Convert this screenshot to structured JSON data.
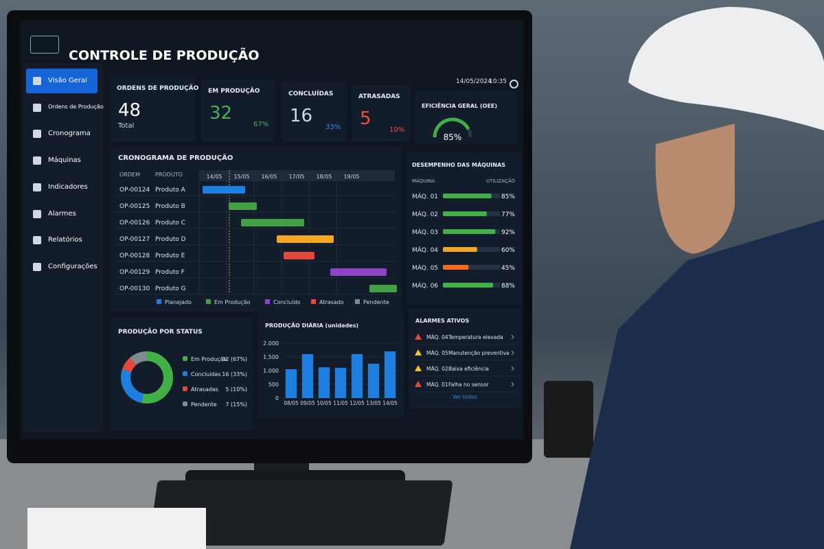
{
  "header": {
    "title": "CONTROLE DE PRODUÇÃO",
    "date": "14/05/2024",
    "time": "10:35"
  },
  "menu": [
    "Visão Geral",
    "Ordens de Produção",
    "Cronograma",
    "Máquinas",
    "Indicadores",
    "Alarmes",
    "Relatórios",
    "Configurações"
  ],
  "cards": [
    {
      "title": "ORDENS DE PRODUÇÃO",
      "value": "48",
      "sub": "Total",
      "color": "#ffffff",
      "subcolor": "#cfd8e3"
    },
    {
      "title": "EM PRODUÇÃO",
      "value": "32",
      "sub": "67%",
      "color": "#4caf50",
      "subcolor": "#4caf50"
    },
    {
      "title": "CONCLUÍDAS",
      "value": "16",
      "sub": "33%",
      "color": "#cfd8e3",
      "subcolor": "#2f8fe8"
    },
    {
      "title": "ATRASADAS",
      "value": "5",
      "sub": "10%",
      "color": "#f0533a",
      "subcolor": "#f0533a"
    }
  ],
  "oee": {
    "title": "EFICIÊNCIA GERAL (OEE)",
    "value": 85,
    "label": "85%",
    "color": "#43b047"
  },
  "schedule": {
    "title": "CRONOGRAMA DE PRODUÇÃO",
    "columns": [
      "ORDEM",
      "PRODUTO"
    ],
    "dates": [
      "14/05",
      "15/05",
      "16/05",
      "17/05",
      "18/05",
      "19/05"
    ],
    "orders": [
      {
        "id": "OP-00124",
        "product": "Produto A"
      },
      {
        "id": "OP-00125",
        "product": "Produto B"
      },
      {
        "id": "OP-00126",
        "product": "Produto C"
      },
      {
        "id": "OP-00127",
        "product": "Produto D"
      },
      {
        "id": "OP-00128",
        "product": "Produto E"
      },
      {
        "id": "OP-00129",
        "product": "Produto F"
      },
      {
        "id": "OP-00130",
        "product": "Produto G"
      }
    ],
    "legend": [
      {
        "name": "Planejado",
        "color": "#1e7fe0"
      },
      {
        "name": "Em Produção",
        "color": "#43a047"
      },
      {
        "name": "Concluído",
        "color": "#8e44c9"
      },
      {
        "name": "Atrasado",
        "color": "#e5483a"
      },
      {
        "name": "Pendente",
        "color": "#7f8c8d"
      }
    ]
  },
  "machines": {
    "title": "DESEMPENHO DAS MÁQUINAS",
    "columns": [
      "MÁQUINA",
      "UTILIZAÇÃO"
    ],
    "names": [
      "MÁQ. 01",
      "MÁQ. 02",
      "MÁQ. 03",
      "MÁQ. 04",
      "MÁQ. 05",
      "MÁQ. 06"
    ],
    "values": [
      85,
      77,
      92,
      60,
      45,
      88
    ],
    "value_labels": [
      "85%",
      "77%",
      "92%",
      "60%",
      "45%",
      "88%"
    ],
    "colors": [
      "#43b047",
      "#43b047",
      "#43b047",
      "#f5a623",
      "#f26b1d",
      "#43b047"
    ]
  },
  "status": {
    "title": "PRODUÇÃO POR STATUS",
    "names": [
      "Em Produção",
      "Concluídas",
      "Atrasadas",
      "Pendente"
    ],
    "values": [
      32,
      16,
      5,
      7
    ],
    "value_labels": [
      "32 (67%)",
      "16 (33%)",
      "5 (10%)",
      "7 (15%)"
    ],
    "colors": [
      "#43b047",
      "#1e7fe0",
      "#e5483a",
      "#7f8c8d"
    ]
  },
  "daily": {
    "type": "bar",
    "title": "PRODUÇÃO DIÁRIA (unidades)",
    "categories": [
      "08/05",
      "09/05",
      "10/05",
      "11/05",
      "12/05",
      "13/05",
      "14/05"
    ],
    "values": [
      1050,
      1600,
      1120,
      1100,
      1600,
      1250,
      1700
    ],
    "color": "#1e7fe0",
    "ylim": [
      0,
      2000
    ],
    "yticks": [
      0,
      500,
      {
        "value": 1000,
        "label": "1.000"
      },
      {
        "value": 1500,
        "label": "1.500"
      },
      {
        "value": 2000,
        "label": "2.000"
      }
    ]
  },
  "alarms": {
    "title": "ALARMES ATIVOS",
    "items": [
      {
        "machine": "MÁQ. 04",
        "message": "Temperatura elevada",
        "color": "#e5483a"
      },
      {
        "machine": "MÁQ. 05",
        "message": "Manutenção preventiva",
        "color": "#f5c518"
      },
      {
        "machine": "MÁQ. 02",
        "message": "Baixa eficiência",
        "color": "#f5c518"
      },
      {
        "machine": "MÁQ. 01",
        "message": "Falha no sensor",
        "color": "#e5483a"
      }
    ],
    "link": "Ver todos"
  }
}
